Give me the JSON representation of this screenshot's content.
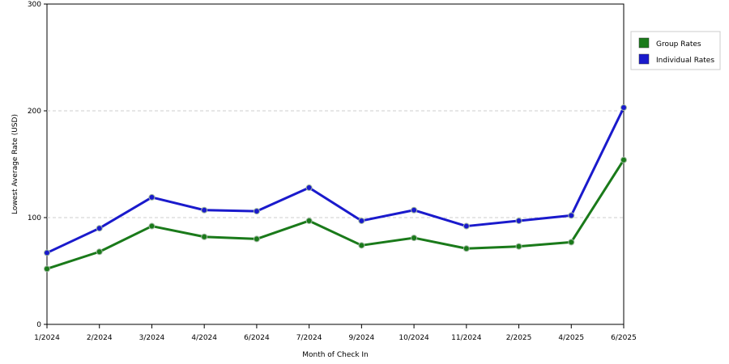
{
  "chart_data": {
    "type": "line",
    "xlabel": "Month of Check In",
    "ylabel": "Lowest Average Rate (USD)",
    "categories": [
      "1/2024",
      "2/2024",
      "3/2024",
      "4/2024",
      "6/2024",
      "7/2024",
      "9/2024",
      "10/2024",
      "11/2024",
      "2/2025",
      "4/2025",
      "6/2025"
    ],
    "ylim": [
      0,
      300
    ],
    "yticks": [
      0,
      100,
      200,
      300
    ],
    "grid": "horizontal dashed",
    "legend_position": "right",
    "series": [
      {
        "name": "Group Rates",
        "color": "#1a7a1a",
        "values": [
          52,
          68,
          92,
          82,
          80,
          97,
          74,
          81,
          71,
          73,
          77,
          154
        ]
      },
      {
        "name": "Individual Rates",
        "color": "#1a1acc",
        "values": [
          67,
          90,
          119,
          107,
          106,
          128,
          97,
          107,
          92,
          97,
          102,
          203
        ]
      }
    ]
  }
}
